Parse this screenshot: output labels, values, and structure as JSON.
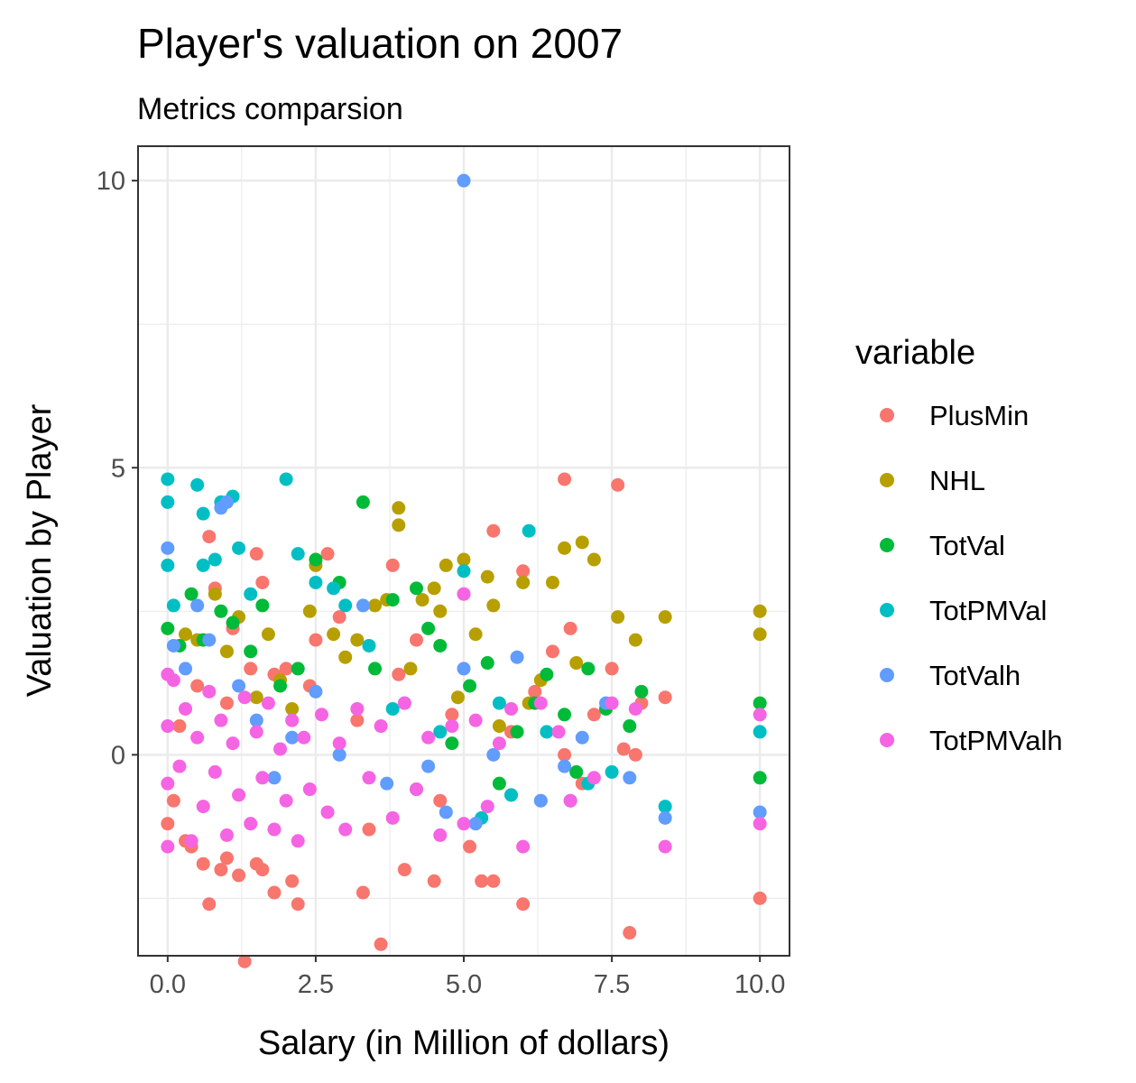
{
  "chart_data": {
    "type": "scatter",
    "title": "Player's valuation on 2007",
    "subtitle": "Metrics comparsion",
    "xlabel": "Salary (in Million of dollars)",
    "ylabel": "Valuation by Player",
    "xlim": [
      -0.5,
      10.5
    ],
    "ylim": [
      -3.5,
      10.6
    ],
    "x_ticks": [
      0.0,
      2.5,
      5.0,
      7.5,
      10.0
    ],
    "x_tick_labels": [
      "0.0",
      "2.5",
      "5.0",
      "7.5",
      "10.0"
    ],
    "y_ticks": [
      0,
      5,
      10
    ],
    "y_tick_labels": [
      "0",
      "5",
      "10"
    ],
    "grid": true,
    "legend": {
      "title": "variable",
      "position": "right"
    },
    "series": [
      {
        "name": "PlusMin",
        "color": "#F8766D",
        "points": [
          [
            0.0,
            -1.2
          ],
          [
            0.1,
            -0.8
          ],
          [
            0.2,
            0.5
          ],
          [
            0.3,
            -1.5
          ],
          [
            0.4,
            -1.6
          ],
          [
            0.5,
            1.2
          ],
          [
            0.6,
            -1.9
          ],
          [
            0.7,
            3.8
          ],
          [
            0.7,
            -2.6
          ],
          [
            0.8,
            2.9
          ],
          [
            0.9,
            -2.0
          ],
          [
            1.0,
            0.9
          ],
          [
            1.0,
            -1.8
          ],
          [
            1.1,
            2.2
          ],
          [
            1.2,
            -2.1
          ],
          [
            1.3,
            -3.6
          ],
          [
            1.4,
            1.5
          ],
          [
            1.5,
            3.5
          ],
          [
            1.5,
            -1.9
          ],
          [
            1.6,
            3.0
          ],
          [
            1.6,
            -2.0
          ],
          [
            1.8,
            1.4
          ],
          [
            1.8,
            -2.4
          ],
          [
            2.0,
            1.5
          ],
          [
            2.1,
            -2.2
          ],
          [
            2.2,
            -2.6
          ],
          [
            2.4,
            1.2
          ],
          [
            2.5,
            2.0
          ],
          [
            2.7,
            3.5
          ],
          [
            2.9,
            2.4
          ],
          [
            3.2,
            0.6
          ],
          [
            3.3,
            -2.4
          ],
          [
            3.4,
            -1.3
          ],
          [
            3.6,
            -3.3
          ],
          [
            3.8,
            3.3
          ],
          [
            3.9,
            1.4
          ],
          [
            4.0,
            -2.0
          ],
          [
            4.2,
            2.0
          ],
          [
            4.5,
            -2.2
          ],
          [
            4.6,
            -0.8
          ],
          [
            4.8,
            0.7
          ],
          [
            5.0,
            2.8
          ],
          [
            5.1,
            -1.6
          ],
          [
            5.3,
            -2.2
          ],
          [
            5.5,
            3.9
          ],
          [
            5.5,
            -2.2
          ],
          [
            5.8,
            0.4
          ],
          [
            6.0,
            3.2
          ],
          [
            6.0,
            -2.6
          ],
          [
            6.2,
            1.1
          ],
          [
            6.3,
            -0.8
          ],
          [
            6.5,
            1.8
          ],
          [
            6.7,
            4.8
          ],
          [
            6.7,
            0.0
          ],
          [
            6.8,
            2.2
          ],
          [
            7.0,
            -0.5
          ],
          [
            7.2,
            0.7
          ],
          [
            7.5,
            1.5
          ],
          [
            7.6,
            4.7
          ],
          [
            7.7,
            0.1
          ],
          [
            7.8,
            -3.1
          ],
          [
            7.9,
            0.0
          ],
          [
            8.0,
            0.9
          ],
          [
            8.4,
            1.0
          ],
          [
            10.0,
            -2.5
          ]
        ]
      },
      {
        "name": "NHL",
        "color": "#B79F00",
        "points": [
          [
            0.3,
            2.1
          ],
          [
            0.5,
            2.0
          ],
          [
            0.8,
            2.8
          ],
          [
            1.0,
            1.8
          ],
          [
            1.2,
            2.4
          ],
          [
            1.5,
            1.0
          ],
          [
            1.7,
            2.1
          ],
          [
            1.9,
            1.3
          ],
          [
            2.1,
            0.8
          ],
          [
            2.4,
            2.5
          ],
          [
            2.5,
            3.3
          ],
          [
            2.8,
            2.1
          ],
          [
            3.0,
            1.7
          ],
          [
            3.2,
            2.0
          ],
          [
            3.5,
            2.6
          ],
          [
            3.7,
            2.7
          ],
          [
            3.9,
            4.3
          ],
          [
            3.9,
            4.0
          ],
          [
            4.1,
            1.5
          ],
          [
            4.3,
            2.7
          ],
          [
            4.5,
            2.9
          ],
          [
            4.6,
            2.5
          ],
          [
            4.7,
            3.3
          ],
          [
            4.9,
            1.0
          ],
          [
            5.0,
            3.4
          ],
          [
            5.2,
            2.1
          ],
          [
            5.4,
            3.1
          ],
          [
            5.5,
            2.6
          ],
          [
            5.6,
            0.5
          ],
          [
            5.8,
            -0.7
          ],
          [
            6.0,
            3.0
          ],
          [
            6.1,
            0.9
          ],
          [
            6.3,
            1.3
          ],
          [
            6.5,
            3.0
          ],
          [
            6.7,
            3.6
          ],
          [
            6.9,
            1.6
          ],
          [
            7.0,
            3.7
          ],
          [
            7.2,
            3.4
          ],
          [
            7.6,
            2.4
          ],
          [
            7.9,
            2.0
          ],
          [
            8.4,
            2.4
          ],
          [
            10.0,
            2.5
          ],
          [
            10.0,
            2.1
          ]
        ]
      },
      {
        "name": "TotVal",
        "color": "#00BA38",
        "points": [
          [
            0.0,
            2.2
          ],
          [
            0.2,
            1.9
          ],
          [
            0.4,
            2.8
          ],
          [
            0.6,
            2.0
          ],
          [
            0.9,
            2.5
          ],
          [
            1.1,
            2.3
          ],
          [
            1.4,
            1.8
          ],
          [
            1.6,
            2.6
          ],
          [
            1.9,
            1.2
          ],
          [
            2.2,
            1.5
          ],
          [
            2.5,
            3.4
          ],
          [
            2.9,
            3.0
          ],
          [
            3.3,
            4.4
          ],
          [
            3.5,
            1.5
          ],
          [
            3.8,
            2.7
          ],
          [
            4.2,
            2.9
          ],
          [
            4.4,
            2.2
          ],
          [
            4.6,
            1.9
          ],
          [
            4.8,
            0.2
          ],
          [
            5.1,
            1.2
          ],
          [
            5.4,
            1.6
          ],
          [
            5.6,
            -0.5
          ],
          [
            5.9,
            0.4
          ],
          [
            6.2,
            0.9
          ],
          [
            6.4,
            1.4
          ],
          [
            6.7,
            0.7
          ],
          [
            6.9,
            -0.3
          ],
          [
            7.1,
            1.5
          ],
          [
            7.4,
            0.8
          ],
          [
            7.8,
            0.5
          ],
          [
            8.0,
            1.1
          ],
          [
            10.0,
            0.9
          ],
          [
            10.0,
            -0.4
          ]
        ]
      },
      {
        "name": "TotPMVal",
        "color": "#00BFC4",
        "points": [
          [
            0.0,
            4.8
          ],
          [
            0.0,
            4.4
          ],
          [
            0.0,
            3.3
          ],
          [
            0.1,
            2.6
          ],
          [
            0.5,
            4.7
          ],
          [
            0.6,
            4.2
          ],
          [
            0.6,
            3.3
          ],
          [
            0.8,
            3.4
          ],
          [
            0.9,
            4.4
          ],
          [
            1.1,
            4.5
          ],
          [
            1.2,
            3.6
          ],
          [
            1.4,
            2.8
          ],
          [
            2.0,
            4.8
          ],
          [
            2.2,
            3.5
          ],
          [
            2.5,
            3.0
          ],
          [
            2.8,
            2.9
          ],
          [
            3.0,
            2.6
          ],
          [
            3.4,
            1.9
          ],
          [
            3.8,
            0.8
          ],
          [
            4.2,
            -0.6
          ],
          [
            4.6,
            0.4
          ],
          [
            5.0,
            3.2
          ],
          [
            5.3,
            -1.1
          ],
          [
            5.6,
            0.9
          ],
          [
            5.8,
            -0.7
          ],
          [
            6.1,
            3.9
          ],
          [
            6.4,
            0.4
          ],
          [
            6.8,
            -0.8
          ],
          [
            7.1,
            -0.5
          ],
          [
            7.5,
            -0.3
          ],
          [
            8.4,
            -0.9
          ],
          [
            10.0,
            0.4
          ]
        ]
      },
      {
        "name": "TotValh",
        "color": "#619CFF",
        "points": [
          [
            0.0,
            3.6
          ],
          [
            0.1,
            1.9
          ],
          [
            0.3,
            1.5
          ],
          [
            0.5,
            2.6
          ],
          [
            0.7,
            2.0
          ],
          [
            0.9,
            4.3
          ],
          [
            1.0,
            4.4
          ],
          [
            1.2,
            1.2
          ],
          [
            1.5,
            0.6
          ],
          [
            1.8,
            -0.4
          ],
          [
            2.1,
            0.3
          ],
          [
            2.5,
            1.1
          ],
          [
            2.9,
            0.0
          ],
          [
            3.3,
            2.6
          ],
          [
            3.7,
            -0.5
          ],
          [
            4.0,
            0.9
          ],
          [
            4.4,
            -0.2
          ],
          [
            4.7,
            -1.0
          ],
          [
            5.0,
            10.0
          ],
          [
            5.0,
            1.5
          ],
          [
            5.2,
            -1.2
          ],
          [
            5.5,
            0.0
          ],
          [
            5.9,
            1.7
          ],
          [
            6.3,
            -0.8
          ],
          [
            6.7,
            -0.2
          ],
          [
            7.0,
            0.3
          ],
          [
            7.4,
            0.9
          ],
          [
            7.8,
            -0.4
          ],
          [
            8.4,
            -1.1
          ],
          [
            10.0,
            -1.0
          ]
        ]
      },
      {
        "name": "TotPMValh",
        "color": "#F564E3",
        "points": [
          [
            0.0,
            1.4
          ],
          [
            0.0,
            0.5
          ],
          [
            0.0,
            -0.5
          ],
          [
            0.0,
            -1.6
          ],
          [
            0.1,
            1.3
          ],
          [
            0.2,
            -0.2
          ],
          [
            0.3,
            0.8
          ],
          [
            0.4,
            -1.5
          ],
          [
            0.5,
            0.3
          ],
          [
            0.6,
            -0.9
          ],
          [
            0.7,
            1.1
          ],
          [
            0.8,
            -0.3
          ],
          [
            0.9,
            0.6
          ],
          [
            1.0,
            -1.4
          ],
          [
            1.1,
            0.2
          ],
          [
            1.2,
            -0.7
          ],
          [
            1.3,
            1.0
          ],
          [
            1.4,
            -1.2
          ],
          [
            1.5,
            0.4
          ],
          [
            1.6,
            -0.4
          ],
          [
            1.7,
            0.9
          ],
          [
            1.8,
            -1.3
          ],
          [
            1.9,
            0.1
          ],
          [
            2.0,
            -0.8
          ],
          [
            2.1,
            0.6
          ],
          [
            2.2,
            -1.5
          ],
          [
            2.3,
            0.3
          ],
          [
            2.4,
            -0.6
          ],
          [
            2.6,
            0.7
          ],
          [
            2.7,
            -1.0
          ],
          [
            2.9,
            0.2
          ],
          [
            3.0,
            -1.3
          ],
          [
            3.2,
            0.8
          ],
          [
            3.4,
            -0.4
          ],
          [
            3.6,
            0.5
          ],
          [
            3.8,
            -1.1
          ],
          [
            4.0,
            0.9
          ],
          [
            4.2,
            -0.6
          ],
          [
            4.4,
            0.3
          ],
          [
            4.6,
            -1.4
          ],
          [
            4.8,
            0.5
          ],
          [
            5.0,
            2.8
          ],
          [
            5.0,
            -1.2
          ],
          [
            5.2,
            0.6
          ],
          [
            5.4,
            -0.9
          ],
          [
            5.6,
            0.2
          ],
          [
            5.8,
            0.8
          ],
          [
            6.0,
            -1.6
          ],
          [
            6.3,
            0.9
          ],
          [
            6.6,
            0.4
          ],
          [
            6.8,
            -0.8
          ],
          [
            7.2,
            -0.4
          ],
          [
            7.5,
            0.9
          ],
          [
            7.9,
            0.8
          ],
          [
            8.4,
            -1.6
          ],
          [
            10.0,
            0.7
          ],
          [
            10.0,
            -1.2
          ]
        ]
      }
    ]
  }
}
